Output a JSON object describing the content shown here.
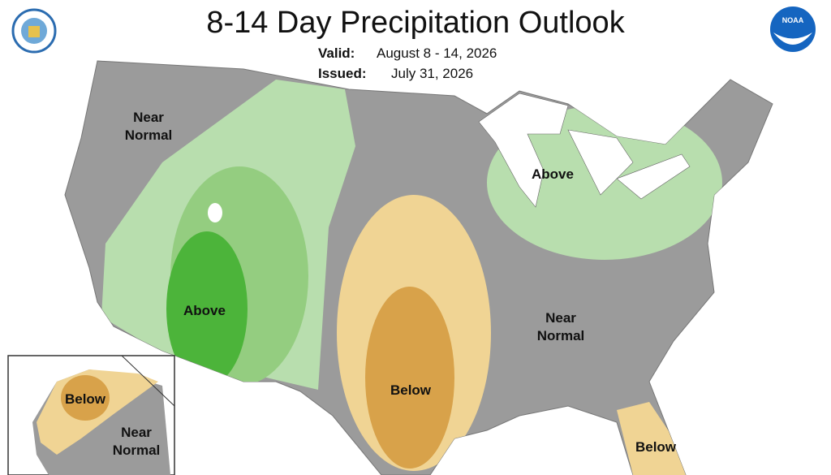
{
  "header": {
    "title": "8-14 Day Precipitation Outlook",
    "valid_label": "Valid:",
    "valid_value": "August 8 - 14, 2026",
    "issued_label": "Issued:",
    "issued_value": "July 31, 2026",
    "logo_text": "NOAA"
  },
  "regions": [
    {
      "lines": [
        "Near",
        "Normal"
      ]
    },
    {
      "lines": [
        "Above"
      ]
    },
    {
      "lines": [
        "Below"
      ]
    },
    {
      "lines": [
        "Above"
      ]
    },
    {
      "lines": [
        "Near",
        "Normal"
      ]
    },
    {
      "lines": [
        "Below"
      ]
    },
    {
      "lines": [
        "Below"
      ]
    },
    {
      "lines": [
        "Near",
        "Normal"
      ]
    }
  ]
}
